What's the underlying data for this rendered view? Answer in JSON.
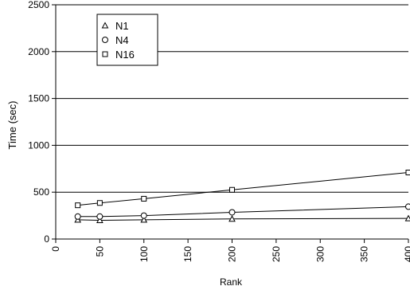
{
  "chart_data": {
    "type": "line",
    "xlabel": "Rank",
    "ylabel": "Time (sec)",
    "xlim": [
      0,
      400
    ],
    "ylim": [
      0,
      2500
    ],
    "xticks": [
      0,
      50,
      100,
      150,
      200,
      250,
      300,
      350,
      400
    ],
    "yticks": [
      0,
      500,
      1000,
      1500,
      2000,
      2500
    ],
    "grid": "horizontal",
    "legend_position": "top-left",
    "series": [
      {
        "name": "N1",
        "marker": "triangle",
        "x": [
          25,
          50,
          100,
          200,
          400
        ],
        "y": [
          205,
          200,
          205,
          215,
          220
        ]
      },
      {
        "name": "N4",
        "marker": "circle",
        "x": [
          25,
          50,
          100,
          200,
          400
        ],
        "y": [
          240,
          240,
          250,
          285,
          345
        ]
      },
      {
        "name": "N16",
        "marker": "square",
        "x": [
          25,
          50,
          100,
          200,
          400
        ],
        "y": [
          360,
          385,
          430,
          525,
          710
        ]
      }
    ]
  }
}
